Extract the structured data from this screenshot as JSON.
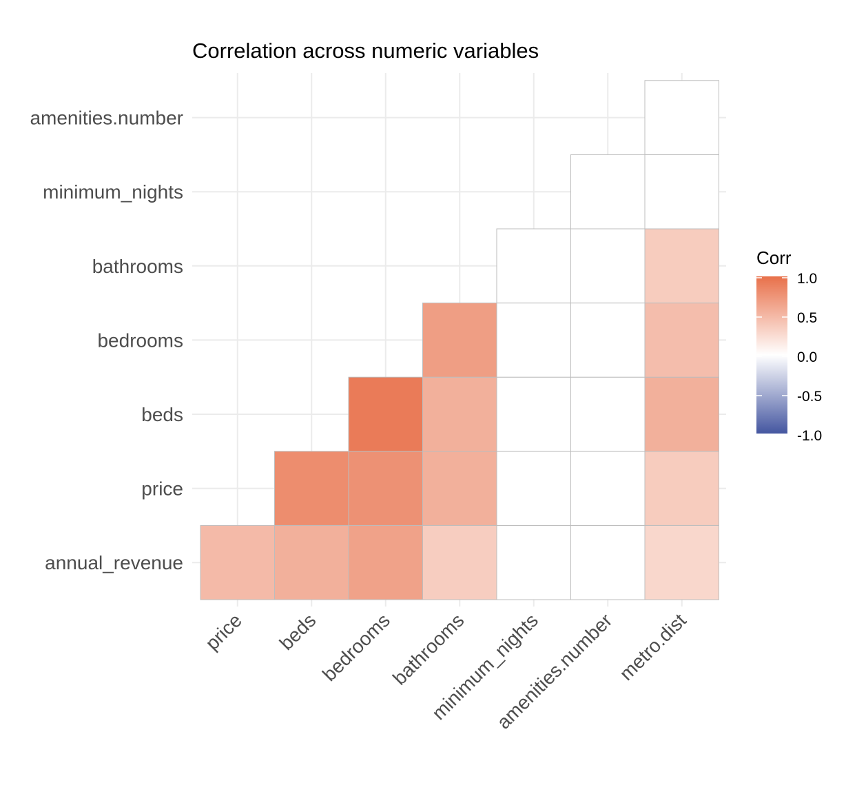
{
  "chart_data": {
    "type": "heatmap",
    "title": "Correlation across numeric variables",
    "x_categories": [
      "price",
      "beds",
      "bedrooms",
      "bathrooms",
      "minimum_nights",
      "amenities.number",
      "metro.dist"
    ],
    "y_categories": [
      "annual_revenue",
      "price",
      "beds",
      "bedrooms",
      "bathrooms",
      "minimum_nights",
      "amenities.number"
    ],
    "cells": [
      {
        "x": "price",
        "y": "annual_revenue",
        "value": 0.48
      },
      {
        "x": "beds",
        "y": "annual_revenue",
        "value": 0.55
      },
      {
        "x": "bedrooms",
        "y": "annual_revenue",
        "value": 0.65
      },
      {
        "x": "bathrooms",
        "y": "annual_revenue",
        "value": 0.35
      },
      {
        "x": "minimum_nights",
        "y": "annual_revenue",
        "value": 0.0
      },
      {
        "x": "amenities.number",
        "y": "annual_revenue",
        "value": 0.0
      },
      {
        "x": "metro.dist",
        "y": "annual_revenue",
        "value": 0.28
      },
      {
        "x": "beds",
        "y": "price",
        "value": 0.8
      },
      {
        "x": "bedrooms",
        "y": "price",
        "value": 0.77
      },
      {
        "x": "bathrooms",
        "y": "price",
        "value": 0.55
      },
      {
        "x": "minimum_nights",
        "y": "price",
        "value": 0.0
      },
      {
        "x": "amenities.number",
        "y": "price",
        "value": 0.0
      },
      {
        "x": "metro.dist",
        "y": "price",
        "value": 0.36
      },
      {
        "x": "bedrooms",
        "y": "beds",
        "value": 0.92
      },
      {
        "x": "bathrooms",
        "y": "beds",
        "value": 0.55
      },
      {
        "x": "minimum_nights",
        "y": "beds",
        "value": 0.0
      },
      {
        "x": "amenities.number",
        "y": "beds",
        "value": 0.0
      },
      {
        "x": "metro.dist",
        "y": "beds",
        "value": 0.55
      },
      {
        "x": "bathrooms",
        "y": "bedrooms",
        "value": 0.68
      },
      {
        "x": "minimum_nights",
        "y": "bedrooms",
        "value": 0.0
      },
      {
        "x": "amenities.number",
        "y": "bedrooms",
        "value": 0.0
      },
      {
        "x": "metro.dist",
        "y": "bedrooms",
        "value": 0.46
      },
      {
        "x": "minimum_nights",
        "y": "bathrooms",
        "value": 0.0
      },
      {
        "x": "amenities.number",
        "y": "bathrooms",
        "value": 0.0
      },
      {
        "x": "metro.dist",
        "y": "bathrooms",
        "value": 0.36
      },
      {
        "x": "amenities.number",
        "y": "minimum_nights",
        "value": 0.0
      },
      {
        "x": "metro.dist",
        "y": "minimum_nights",
        "value": 0.0
      },
      {
        "x": "metro.dist",
        "y": "amenities.number",
        "value": 0.0
      }
    ],
    "legend": {
      "title": "Corr",
      "position": "right",
      "ticks": [
        "1.0",
        "0.5",
        "0.0",
        "-0.5",
        "-1.0"
      ],
      "range": [
        -1,
        1
      ]
    },
    "colors": {
      "high": "#E8704A",
      "mid": "#FFFFFF",
      "low": "#4456A0"
    },
    "grid": true
  }
}
